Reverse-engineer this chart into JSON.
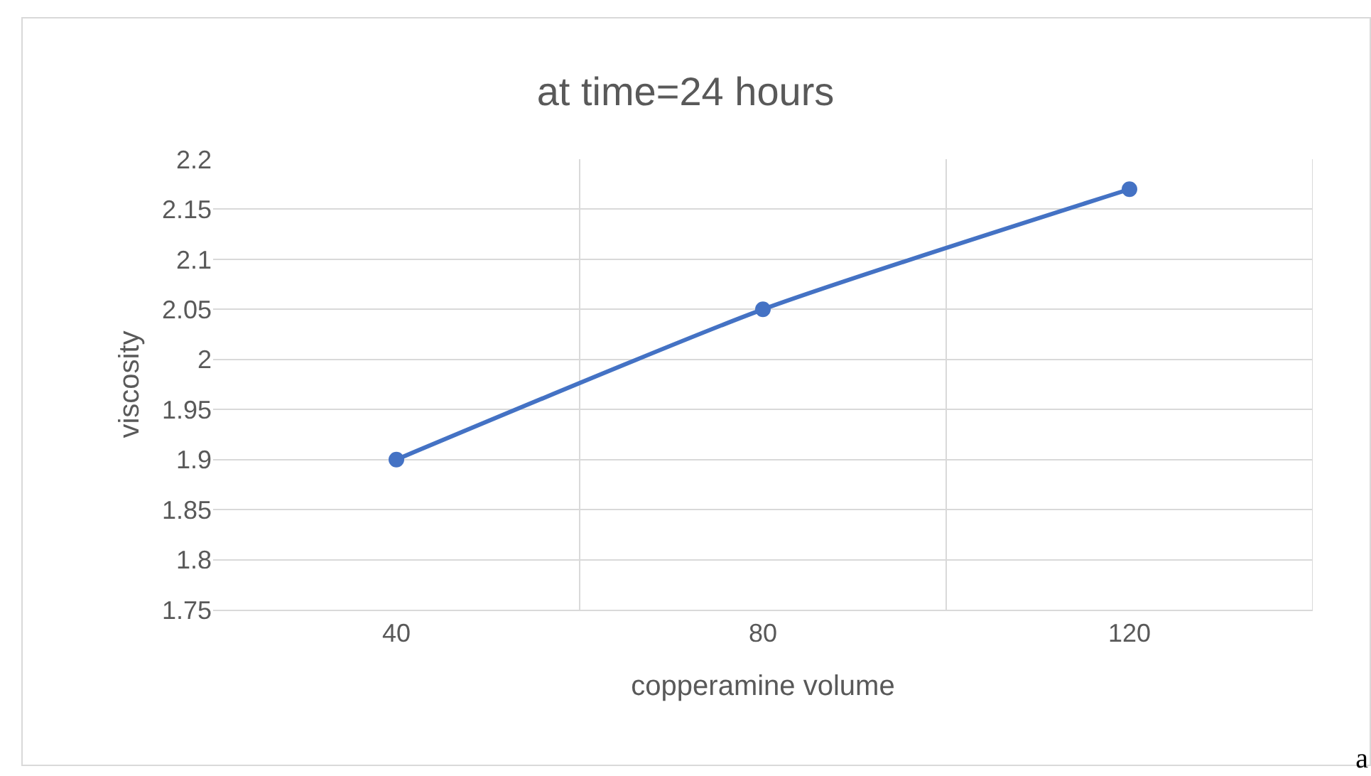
{
  "chart_data": {
    "type": "line",
    "title": "at time=24 hours",
    "xlabel": "copperamine volume",
    "ylabel": "viscosity",
    "categories": [
      "40",
      "80",
      "120"
    ],
    "series": [
      {
        "color": "#4472c4",
        "values": [
          1.9,
          2.05,
          2.17
        ]
      }
    ],
    "ylim": [
      1.75,
      2.2
    ],
    "yticks": [
      1.75,
      1.8,
      1.85,
      1.9,
      1.95,
      2,
      2.05,
      2.1,
      2.15,
      2.2
    ],
    "grid": true,
    "legend": false,
    "marker": "circle",
    "line_style": "solid",
    "annotations": [
      "a"
    ]
  }
}
